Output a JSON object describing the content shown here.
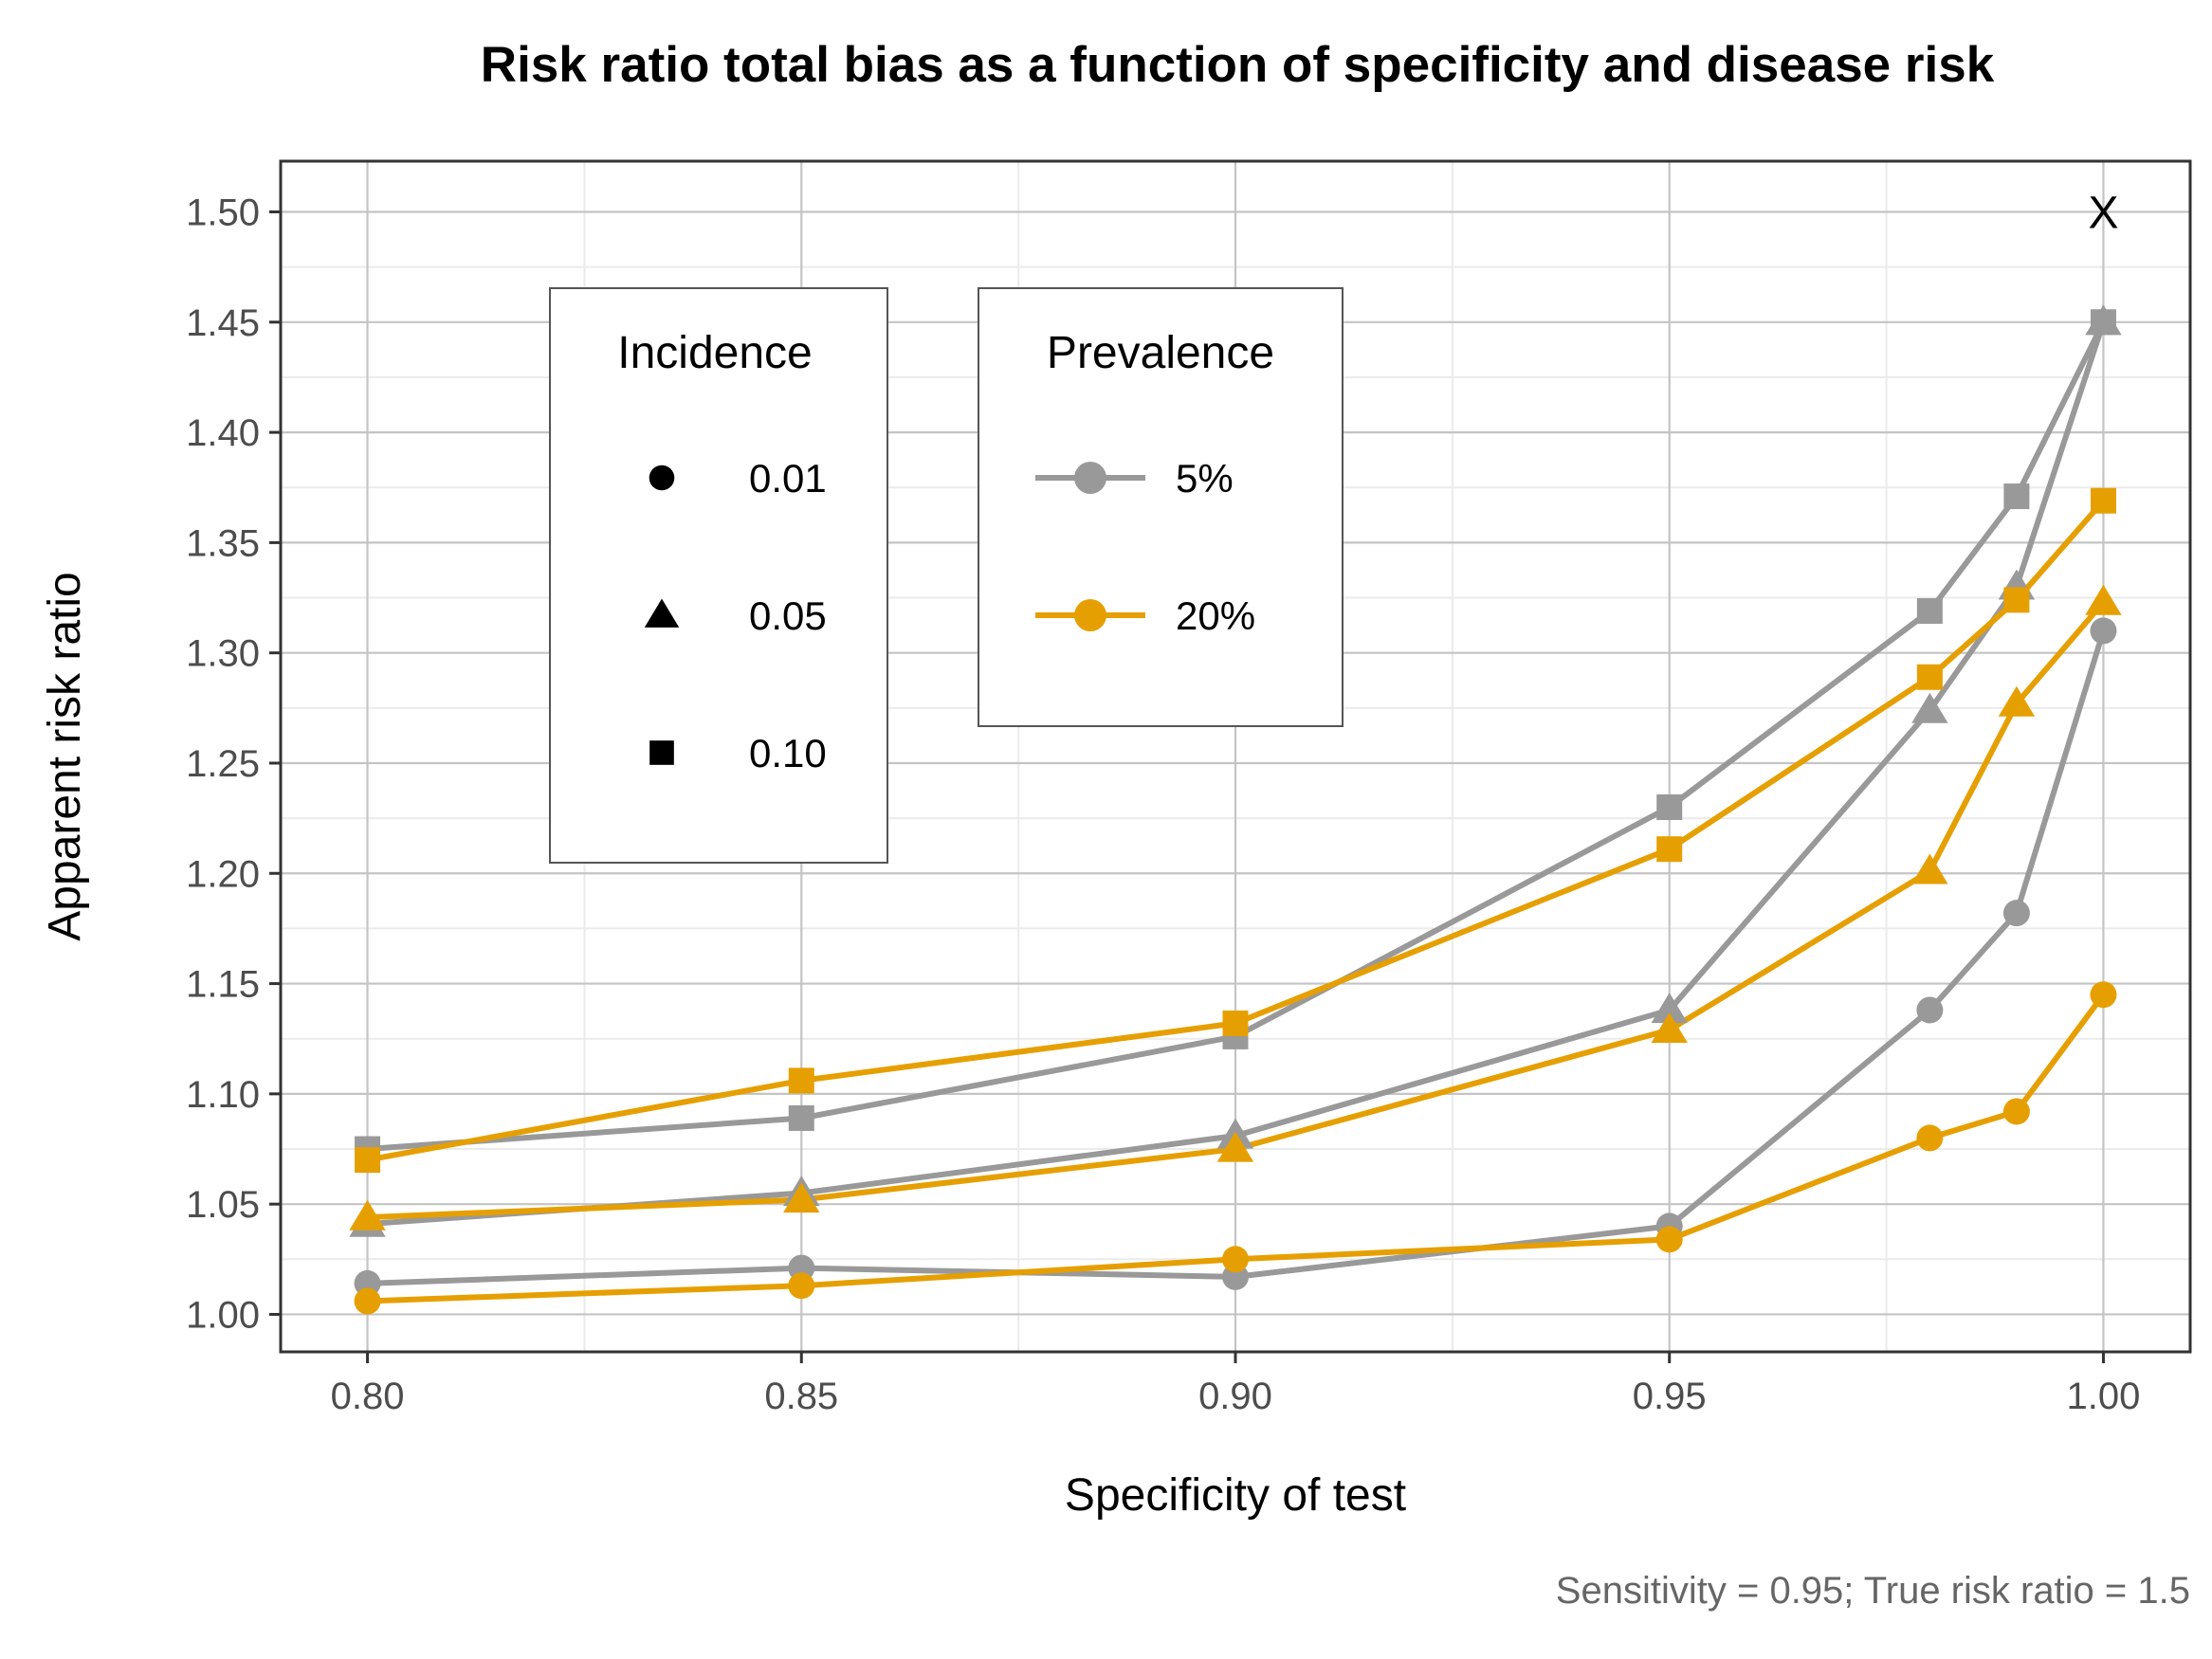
{
  "chart_data": {
    "type": "line",
    "title": "Risk ratio total bias as a function of specificity and disease risk",
    "xlabel": "Specificity of test",
    "ylabel": "Apparent risk ratio",
    "caption": "Sensitivity = 0.95; True risk ratio = 1.5",
    "xlim": [
      0.79,
      1.01
    ],
    "ylim": [
      0.983,
      1.523
    ],
    "x_ticks": [
      0.8,
      0.85,
      0.9,
      0.95,
      1.0
    ],
    "x_tick_labels": [
      "0.80",
      "0.85",
      "0.90",
      "0.95",
      "1.00"
    ],
    "y_ticks": [
      1.0,
      1.05,
      1.1,
      1.15,
      1.2,
      1.25,
      1.3,
      1.35,
      1.4,
      1.45,
      1.5
    ],
    "y_tick_labels": [
      "1.00",
      "1.05",
      "1.10",
      "1.15",
      "1.20",
      "1.25",
      "1.30",
      "1.35",
      "1.40",
      "1.45",
      "1.50"
    ],
    "grid": true,
    "x": [
      0.8,
      0.85,
      0.9,
      0.95,
      0.98,
      0.99,
      1.0
    ],
    "series": [
      {
        "prevalence": "5%",
        "incidence": "0.01",
        "shape": "circle",
        "color": "#999999",
        "values": [
          1.014,
          1.021,
          1.017,
          1.04,
          1.138,
          1.182,
          1.31
        ]
      },
      {
        "prevalence": "5%",
        "incidence": "0.05",
        "shape": "triangle",
        "color": "#999999",
        "values": [
          1.041,
          1.055,
          1.081,
          1.138,
          1.274,
          1.33,
          1.45
        ]
      },
      {
        "prevalence": "5%",
        "incidence": "0.10",
        "shape": "square",
        "color": "#999999",
        "values": [
          1.075,
          1.089,
          1.126,
          1.23,
          1.319,
          1.371,
          1.45
        ]
      },
      {
        "prevalence": "20%",
        "incidence": "0.01",
        "shape": "circle",
        "color": "#E69F00",
        "values": [
          1.006,
          1.013,
          1.025,
          1.034,
          1.08,
          1.092,
          1.145
        ]
      },
      {
        "prevalence": "20%",
        "incidence": "0.05",
        "shape": "triangle",
        "color": "#E69F00",
        "values": [
          1.044,
          1.052,
          1.075,
          1.129,
          1.201,
          1.277,
          1.323
        ]
      },
      {
        "prevalence": "20%",
        "incidence": "0.10",
        "shape": "square",
        "color": "#E69F00",
        "values": [
          1.07,
          1.106,
          1.132,
          1.211,
          1.289,
          1.324,
          1.369
        ]
      }
    ],
    "annotation": {
      "text": "X",
      "x": 1.0,
      "y": 1.5
    },
    "legend_incidence": {
      "title": "Incidence",
      "entries": [
        {
          "label": "0.01",
          "shape": "circle"
        },
        {
          "label": "0.05",
          "shape": "triangle"
        },
        {
          "label": "0.10",
          "shape": "square"
        }
      ]
    },
    "legend_prevalence": {
      "title": "Prevalence",
      "entries": [
        {
          "label": "5%",
          "color": "#999999"
        },
        {
          "label": "20%",
          "color": "#E69F00"
        }
      ]
    }
  }
}
